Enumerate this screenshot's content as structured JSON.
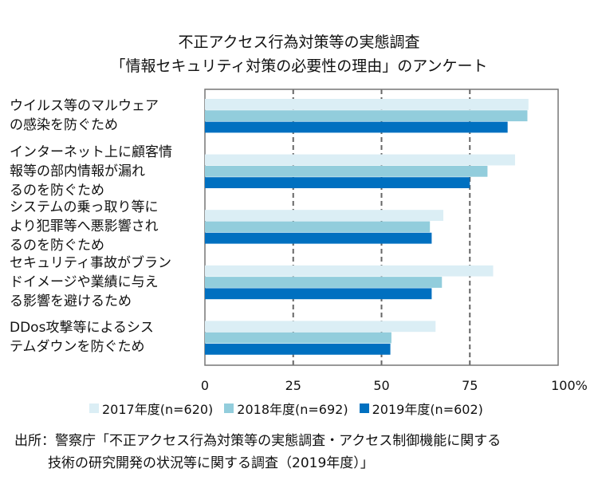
{
  "chart_data": {
    "type": "bar",
    "orientation": "horizontal",
    "title": [
      "不正アクセス行為対策等の実態調査",
      "「情報セキュリティ対策の必要性の理由」のアンケート"
    ],
    "categories": [
      [
        "ウイルス等のマルウェア",
        "の感染を防ぐため"
      ],
      [
        "インターネット上に顧客情",
        "報等の部内情報が漏れ",
        "るのを防ぐため"
      ],
      [
        "システムの乗っ取り等に",
        "より犯罪等へ悪影響され",
        "るのを防ぐため"
      ],
      [
        "セキュリティ事故がブラン",
        "ドイメージや業績に与え",
        "る影響を避けるため"
      ],
      [
        "DDos攻撃等によるシス",
        "テムダウンを防ぐため"
      ]
    ],
    "series": [
      {
        "name": "2017年度(n=620)",
        "color": "#dbeef5",
        "values": [
          91.6,
          87.8,
          67.5,
          81.6,
          65.3
        ]
      },
      {
        "name": "2018年度(n=692)",
        "color": "#92cddc",
        "values": [
          91.3,
          80.0,
          63.7,
          67.1,
          52.8
        ]
      },
      {
        "name": "2019年度(n=602)",
        "color": "#0070c0",
        "values": [
          85.7,
          75.0,
          64.2,
          64.2,
          52.5
        ]
      }
    ],
    "xticks": [
      "0",
      "25",
      "50",
      "75",
      "100%"
    ],
    "xlim": [
      0,
      100
    ],
    "grid": "vertical dashed",
    "legend": "bottom"
  },
  "source": [
    "出所：警察庁「不正アクセス行為対策等の実態調査・アクセス制御機能に関する",
    "技術の研究開発の状況等に関する調査（2019年度）」"
  ]
}
